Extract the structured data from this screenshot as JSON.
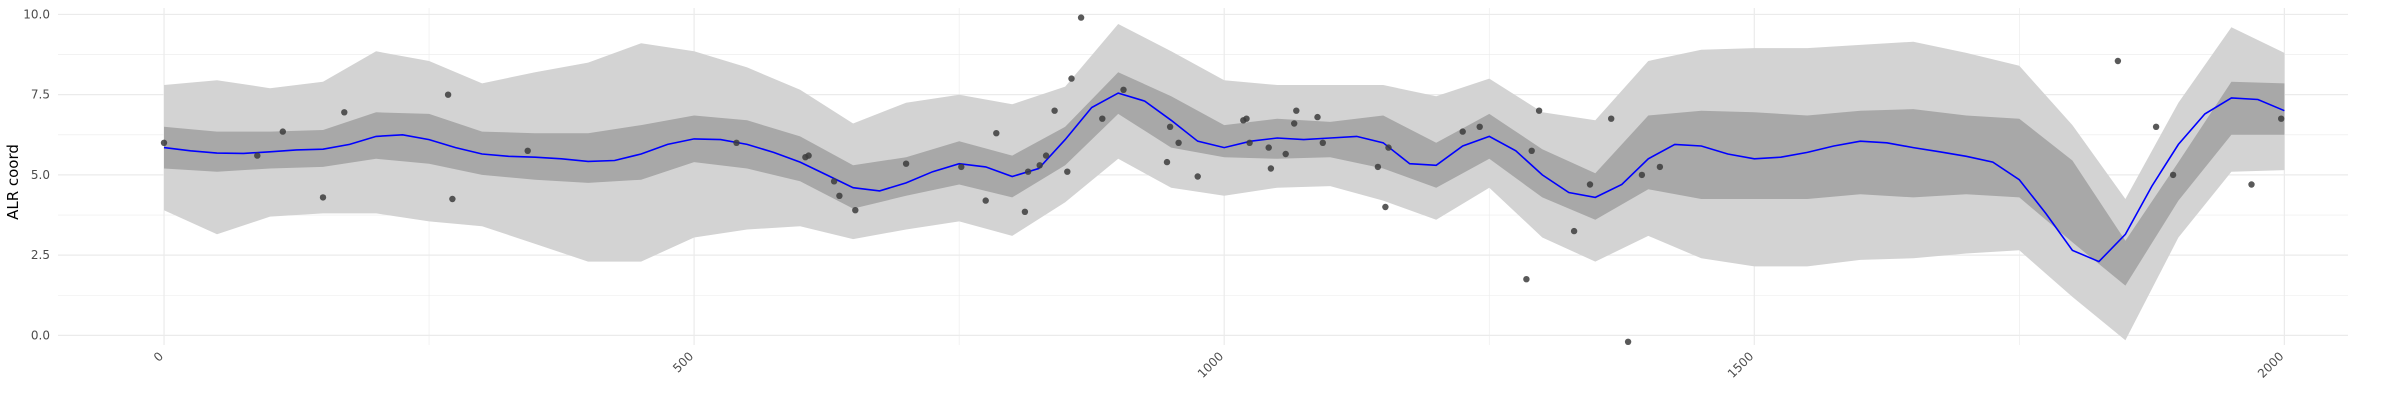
{
  "chart_data": {
    "type": "line",
    "title": "",
    "xlabel": "",
    "ylabel": "ALR coord",
    "xlim": [
      -100,
      2060
    ],
    "ylim": [
      -0.3,
      10.2
    ],
    "x_ticks": [
      0,
      500,
      1000,
      1500,
      2000
    ],
    "x_tick_labels": [
      "0",
      "500",
      "1000",
      "1500",
      "2000"
    ],
    "y_ticks": [
      0.0,
      2.5,
      5.0,
      7.5,
      10.0
    ],
    "y_tick_labels": [
      "0.0",
      "2.5",
      "5.0",
      "7.5",
      "10.0"
    ],
    "grid": true,
    "legend": "none",
    "colors": {
      "mean_line": "#0000ff",
      "inner_band": "#a8a8a8",
      "outer_band": "#d3d3d3",
      "points": "#3c3c3c",
      "grid": "#ebebeb"
    },
    "series": [
      {
        "name": "",
        "kind": "line",
        "x": [
          0,
          25,
          50,
          75,
          100,
          125,
          150,
          175,
          200,
          225,
          250,
          275,
          300,
          325,
          350,
          375,
          400,
          425,
          450,
          475,
          500,
          525,
          550,
          575,
          600,
          625,
          650,
          675,
          700,
          725,
          750,
          775,
          800,
          825,
          850,
          875,
          900,
          925,
          950,
          975,
          1000,
          1025,
          1050,
          1075,
          1100,
          1125,
          1150,
          1175,
          1200,
          1225,
          1250,
          1275,
          1300,
          1325,
          1350,
          1375,
          1400,
          1425,
          1450,
          1475,
          1500,
          1525,
          1550,
          1575,
          1600,
          1625,
          1650,
          1675,
          1700,
          1725,
          1750,
          1775,
          1800,
          1825,
          1850,
          1875,
          1900,
          1925,
          1950,
          1975,
          2000
        ],
        "y": [
          5.85,
          5.75,
          5.68,
          5.67,
          5.72,
          5.78,
          5.8,
          5.95,
          6.2,
          6.25,
          6.1,
          5.85,
          5.65,
          5.58,
          5.55,
          5.5,
          5.42,
          5.45,
          5.65,
          5.95,
          6.12,
          6.1,
          5.95,
          5.7,
          5.4,
          5.0,
          4.6,
          4.5,
          4.75,
          5.1,
          5.35,
          5.25,
          4.95,
          5.2,
          6.1,
          7.1,
          7.55,
          7.3,
          6.7,
          6.05,
          5.85,
          6.05,
          6.15,
          6.1,
          6.15,
          6.2,
          6.0,
          5.35,
          5.3,
          5.9,
          6.2,
          5.75,
          5.0,
          4.45,
          4.3,
          4.7,
          5.5,
          5.95,
          5.9,
          5.65,
          5.5,
          5.55,
          5.7,
          5.9,
          6.05,
          6.0,
          5.85,
          5.72,
          5.58,
          5.4,
          4.85,
          3.8,
          2.65,
          2.3,
          3.15,
          4.65,
          5.95,
          6.9,
          7.4,
          7.35,
          7.0
        ]
      },
      {
        "name": "",
        "kind": "band",
        "x": [
          0,
          50,
          100,
          150,
          200,
          250,
          300,
          350,
          400,
          450,
          500,
          550,
          600,
          650,
          700,
          750,
          800,
          850,
          900,
          950,
          1000,
          1050,
          1100,
          1150,
          1200,
          1250,
          1300,
          1350,
          1400,
          1450,
          1500,
          1550,
          1600,
          1650,
          1700,
          1750,
          1800,
          1850,
          1900,
          1950,
          2000
        ],
        "lower": [
          5.2,
          5.1,
          5.2,
          5.25,
          5.5,
          5.35,
          5.0,
          4.85,
          4.75,
          4.85,
          5.4,
          5.2,
          4.8,
          3.95,
          4.35,
          4.7,
          4.3,
          5.3,
          6.9,
          5.85,
          5.55,
          5.5,
          5.55,
          5.2,
          4.6,
          5.5,
          4.3,
          3.6,
          4.55,
          4.25,
          4.25,
          4.25,
          4.4,
          4.3,
          4.4,
          4.3,
          2.9,
          1.55,
          4.2,
          6.25,
          6.25
        ],
        "upper": [
          6.5,
          6.35,
          6.35,
          6.4,
          6.95,
          6.9,
          6.35,
          6.3,
          6.3,
          6.55,
          6.85,
          6.7,
          6.2,
          5.3,
          5.55,
          6.05,
          5.6,
          6.5,
          8.2,
          7.45,
          6.55,
          6.75,
          6.65,
          6.85,
          6.0,
          6.9,
          5.8,
          5.05,
          6.85,
          7.0,
          6.95,
          6.85,
          7.0,
          7.05,
          6.85,
          6.75,
          5.45,
          2.95,
          5.4,
          7.9,
          7.85
        ]
      },
      {
        "name": "",
        "kind": "band",
        "x": [
          0,
          50,
          100,
          150,
          200,
          250,
          300,
          350,
          400,
          450,
          500,
          550,
          600,
          650,
          700,
          750,
          800,
          850,
          900,
          950,
          1000,
          1050,
          1100,
          1150,
          1200,
          1250,
          1300,
          1350,
          1400,
          1450,
          1500,
          1550,
          1600,
          1650,
          1700,
          1750,
          1800,
          1850,
          1900,
          1950,
          2000
        ],
        "lower": [
          3.9,
          3.15,
          3.7,
          3.8,
          3.8,
          3.55,
          3.4,
          2.85,
          2.3,
          2.3,
          3.05,
          3.3,
          3.4,
          3.0,
          3.3,
          3.55,
          3.1,
          4.15,
          5.5,
          4.6,
          4.35,
          4.6,
          4.65,
          4.2,
          3.6,
          4.6,
          3.05,
          2.3,
          3.1,
          2.4,
          2.15,
          2.15,
          2.35,
          2.4,
          2.55,
          2.65,
          1.2,
          -0.15,
          3.05,
          5.1,
          5.15
        ],
        "upper": [
          7.8,
          7.95,
          7.7,
          7.9,
          8.85,
          8.55,
          7.85,
          8.2,
          8.5,
          9.1,
          8.85,
          8.35,
          7.65,
          6.6,
          7.25,
          7.5,
          7.2,
          7.75,
          9.7,
          8.85,
          7.95,
          7.8,
          7.8,
          7.8,
          7.45,
          8.0,
          6.95,
          6.7,
          8.55,
          8.9,
          8.95,
          8.95,
          9.05,
          9.15,
          8.8,
          8.4,
          6.55,
          4.25,
          7.25,
          9.6,
          8.8
        ]
      },
      {
        "name": "",
        "kind": "scatter",
        "x": [
          0,
          88,
          112,
          150,
          170,
          268,
          272,
          343,
          540,
          605,
          608,
          632,
          637,
          652,
          700,
          752,
          775,
          785,
          812,
          815,
          826,
          832,
          840,
          852,
          856,
          865,
          885,
          905,
          946,
          949,
          957,
          975,
          1018,
          1021,
          1024,
          1042,
          1044,
          1058,
          1066,
          1068,
          1088,
          1093,
          1145,
          1152,
          1155,
          1225,
          1241,
          1285,
          1290,
          1297,
          1330,
          1345,
          1365,
          1381,
          1394,
          1411,
          1843,
          1879,
          1895,
          1969,
          1997
        ],
        "y": [
          6.0,
          5.6,
          6.35,
          4.3,
          6.95,
          7.5,
          4.25,
          5.75,
          6.0,
          5.55,
          5.6,
          4.8,
          4.35,
          3.9,
          5.35,
          5.25,
          4.2,
          6.3,
          3.85,
          5.1,
          5.3,
          5.6,
          7.0,
          5.1,
          8.0,
          9.9,
          6.75,
          7.65,
          5.4,
          6.5,
          6.0,
          4.95,
          6.7,
          6.75,
          6.0,
          5.85,
          5.2,
          5.65,
          6.6,
          7.0,
          6.8,
          6.0,
          5.25,
          4.0,
          5.85,
          6.35,
          6.5,
          1.75,
          5.75,
          7.0,
          3.25,
          4.7,
          6.75,
          -0.2,
          5.0,
          5.25,
          8.55,
          6.5,
          5.0,
          4.7,
          6.75
        ]
      }
    ]
  }
}
